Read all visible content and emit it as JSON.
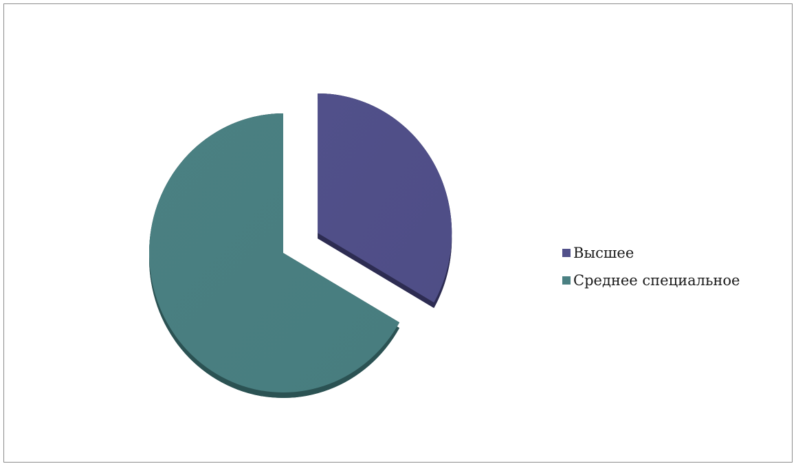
{
  "chart_data": {
    "type": "pie",
    "categories": [
      "Высшее",
      "Среднее специальное"
    ],
    "values": [
      33.3,
      66.7
    ],
    "colors": [
      "#51508a",
      "#4a8082"
    ],
    "side_colors": [
      "#2d2c52",
      "#2b5253"
    ],
    "exploded_slice": 0,
    "legend_position": "right"
  }
}
